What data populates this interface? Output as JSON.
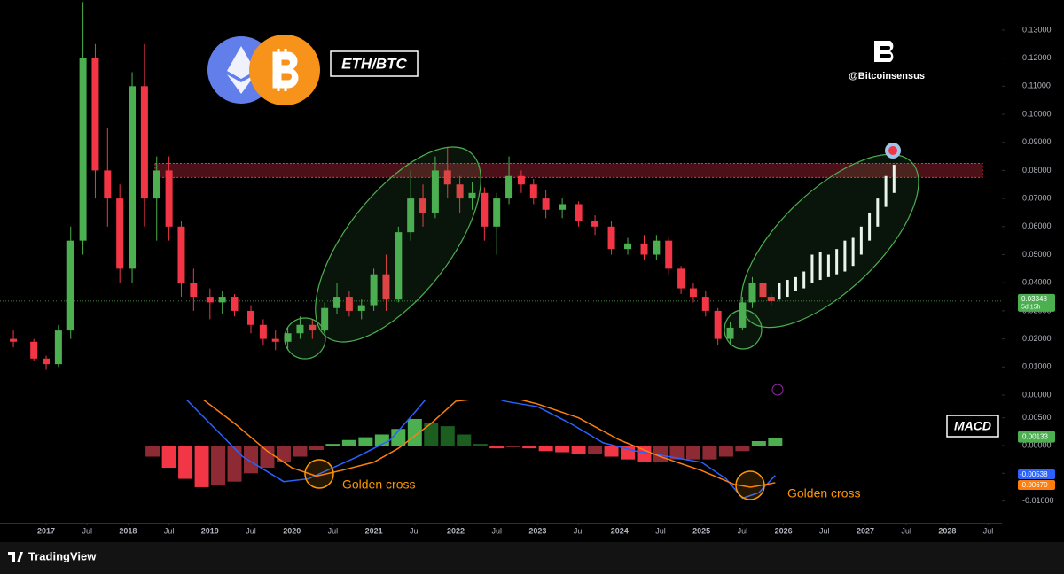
{
  "chart_data": [
    {
      "type": "candlestick",
      "title": "ETH/BTC",
      "watermark": "@Bitcoinsensus",
      "countdown": "5d 15h",
      "up_color": "#4caf50",
      "down_color": "#f23645",
      "x": [
        2016.6,
        2016.85,
        2017.0,
        2017.15,
        2017.3,
        2017.45,
        2017.6,
        2017.75,
        2017.9,
        2018.05,
        2018.2,
        2018.35,
        2018.5,
        2018.65,
        2018.8,
        2019.0,
        2019.15,
        2019.3,
        2019.5,
        2019.65,
        2019.8,
        2019.95,
        2020.1,
        2020.25,
        2020.4,
        2020.55,
        2020.7,
        2020.85,
        2021.0,
        2021.15,
        2021.3,
        2021.45,
        2021.6,
        2021.75,
        2021.9,
        2022.05,
        2022.2,
        2022.35,
        2022.5,
        2022.65,
        2022.8,
        2022.95,
        2023.1,
        2023.3,
        2023.5,
        2023.7,
        2023.9,
        2024.1,
        2024.3,
        2024.45,
        2024.6,
        2024.75,
        2024.9,
        2025.05,
        2025.2,
        2025.35,
        2025.5,
        2025.62,
        2025.75,
        2025.85
      ],
      "open": [
        0.02,
        0.019,
        0.013,
        0.011,
        0.023,
        0.055,
        0.12,
        0.08,
        0.07,
        0.045,
        0.11,
        0.07,
        0.08,
        0.06,
        0.04,
        0.035,
        0.033,
        0.035,
        0.03,
        0.025,
        0.02,
        0.019,
        0.022,
        0.025,
        0.023,
        0.031,
        0.035,
        0.03,
        0.032,
        0.043,
        0.034,
        0.058,
        0.07,
        0.065,
        0.08,
        0.075,
        0.07,
        0.072,
        0.06,
        0.07,
        0.078,
        0.075,
        0.07,
        0.066,
        0.068,
        0.062,
        0.06,
        0.052,
        0.054,
        0.05,
        0.055,
        0.045,
        0.038,
        0.035,
        0.03,
        0.02,
        0.024,
        0.033,
        0.04,
        0.035
      ],
      "high": [
        0.023,
        0.02,
        0.014,
        0.025,
        0.06,
        0.14,
        0.125,
        0.095,
        0.075,
        0.115,
        0.125,
        0.085,
        0.085,
        0.062,
        0.045,
        0.038,
        0.037,
        0.036,
        0.032,
        0.027,
        0.023,
        0.024,
        0.028,
        0.027,
        0.033,
        0.04,
        0.037,
        0.034,
        0.045,
        0.05,
        0.06,
        0.08,
        0.075,
        0.085,
        0.088,
        0.078,
        0.076,
        0.074,
        0.072,
        0.085,
        0.08,
        0.077,
        0.073,
        0.07,
        0.069,
        0.064,
        0.062,
        0.056,
        0.057,
        0.057,
        0.056,
        0.046,
        0.04,
        0.037,
        0.031,
        0.026,
        0.035,
        0.042,
        0.041,
        0.036
      ],
      "low": [
        0.017,
        0.012,
        0.009,
        0.01,
        0.02,
        0.05,
        0.07,
        0.06,
        0.04,
        0.04,
        0.06,
        0.055,
        0.055,
        0.035,
        0.03,
        0.027,
        0.029,
        0.028,
        0.022,
        0.018,
        0.016,
        0.016,
        0.02,
        0.02,
        0.022,
        0.029,
        0.028,
        0.027,
        0.03,
        0.03,
        0.033,
        0.055,
        0.06,
        0.063,
        0.07,
        0.065,
        0.066,
        0.055,
        0.05,
        0.068,
        0.072,
        0.068,
        0.063,
        0.063,
        0.06,
        0.057,
        0.05,
        0.05,
        0.048,
        0.048,
        0.043,
        0.036,
        0.033,
        0.028,
        0.018,
        0.018,
        0.023,
        0.031,
        0.033,
        0.032
      ],
      "close": [
        0.019,
        0.013,
        0.011,
        0.023,
        0.055,
        0.12,
        0.08,
        0.07,
        0.045,
        0.11,
        0.07,
        0.08,
        0.06,
        0.04,
        0.035,
        0.033,
        0.035,
        0.03,
        0.025,
        0.02,
        0.019,
        0.022,
        0.025,
        0.023,
        0.031,
        0.035,
        0.03,
        0.032,
        0.043,
        0.034,
        0.058,
        0.07,
        0.065,
        0.08,
        0.075,
        0.07,
        0.072,
        0.06,
        0.07,
        0.078,
        0.075,
        0.07,
        0.066,
        0.068,
        0.062,
        0.06,
        0.052,
        0.054,
        0.05,
        0.055,
        0.045,
        0.038,
        0.035,
        0.03,
        0.02,
        0.024,
        0.033,
        0.04,
        0.035,
        0.03348
      ],
      "projection": {
        "color": "#ffffff",
        "x": [
          2025.95,
          2026.05,
          2026.15,
          2026.25,
          2026.35,
          2026.45,
          2026.55,
          2026.65,
          2026.75,
          2026.85,
          2026.95,
          2027.05,
          2027.15,
          2027.25,
          2027.35
        ],
        "low": [
          0.034,
          0.035,
          0.037,
          0.038,
          0.04,
          0.041,
          0.042,
          0.043,
          0.044,
          0.046,
          0.05,
          0.055,
          0.06,
          0.067,
          0.072
        ],
        "high": [
          0.04,
          0.041,
          0.042,
          0.044,
          0.05,
          0.051,
          0.05,
          0.052,
          0.055,
          0.056,
          0.06,
          0.065,
          0.07,
          0.078,
          0.082
        ]
      },
      "zone": {
        "low": 0.0775,
        "high": 0.0825,
        "color": "#8b1e2b"
      },
      "xlim": [
        2016.437,
        2028.667
      ],
      "xticks": [
        2017,
        {
          "value": 2017.5,
          "label": "Jul"
        },
        2018,
        {
          "value": 2018.5,
          "label": "Jul"
        },
        2019,
        {
          "value": 2019.5,
          "label": "Jul"
        },
        2020,
        {
          "value": 2020.5,
          "label": "Jul"
        },
        2021,
        {
          "value": 2021.5,
          "label": "Jul"
        },
        2022,
        {
          "value": 2022.5,
          "label": "Jul"
        },
        2023,
        {
          "value": 2023.5,
          "label": "Jul"
        },
        2024,
        {
          "value": 2024.5,
          "label": "Jul"
        },
        2025,
        {
          "value": 2025.5,
          "label": "Jul"
        },
        2026,
        {
          "value": 2026.5,
          "label": "Jul"
        },
        2027,
        {
          "value": 2027.5,
          "label": "Jul"
        },
        2028,
        {
          "value": 2028.5,
          "label": "Jul"
        }
      ],
      "ylim": [
        -0.00126,
        0.1407
      ],
      "yticks": [
        {
          "value": 0,
          "label": "0.00000"
        },
        {
          "value": 0.01,
          "label": "0.01000"
        },
        {
          "value": 0.02,
          "label": "0.02000"
        },
        {
          "value": 0.03,
          "label": "0.03000"
        },
        {
          "value": 0.04,
          "label": "0.04000"
        },
        {
          "value": 0.05,
          "label": "0.05000"
        },
        {
          "value": 0.06,
          "label": "0.06000"
        },
        {
          "value": 0.07,
          "label": "0.07000"
        },
        {
          "value": 0.08,
          "label": "0.08000"
        },
        {
          "value": 0.09,
          "label": "0.09000"
        },
        {
          "value": 0.1,
          "label": "0.10000"
        },
        {
          "value": 0.11,
          "label": "0.11000"
        },
        {
          "value": 0.12,
          "label": "0.12000"
        },
        {
          "value": 0.13,
          "label": "0.13000"
        }
      ]
    },
    {
      "type": "macd",
      "title": "MACD",
      "annotations": [
        "Golden cross",
        "Golden cross"
      ],
      "x": [
        2018.3,
        2018.5,
        2018.7,
        2018.9,
        2019.1,
        2019.3,
        2019.5,
        2019.7,
        2019.9,
        2020.1,
        2020.3,
        2020.5,
        2020.7,
        2020.9,
        2021.1,
        2021.3,
        2021.5,
        2021.7,
        2021.9,
        2022.1,
        2022.3,
        2022.5,
        2022.7,
        2022.9,
        2023.1,
        2023.3,
        2023.5,
        2023.7,
        2023.9,
        2024.1,
        2024.3,
        2024.5,
        2024.7,
        2024.9,
        2025.1,
        2025.3,
        2025.5,
        2025.7,
        2025.9
      ],
      "histogram": [
        -0.002,
        -0.004,
        -0.006,
        -0.0075,
        -0.0072,
        -0.0065,
        -0.005,
        -0.004,
        -0.003,
        -0.002,
        -0.0008,
        0.0003,
        0.001,
        0.0015,
        0.002,
        0.003,
        0.0048,
        0.004,
        0.0035,
        0.002,
        0.0003,
        -0.0005,
        -0.0003,
        -0.0005,
        -0.001,
        -0.0012,
        -0.0015,
        -0.0015,
        -0.002,
        -0.0025,
        -0.003,
        -0.003,
        -0.0025,
        -0.0025,
        -0.0025,
        -0.002,
        -0.001,
        0.0008,
        0.00133
      ],
      "series": [
        {
          "color": "#2962ff",
          "x": [
            2018.7,
            2019.0,
            2019.4,
            2019.9,
            2020.2,
            2020.5,
            2020.8,
            2021.2,
            2021.5,
            2021.7,
            2022.3,
            2022.6,
            2023.0,
            2023.4,
            2023.8,
            2024.2,
            2024.6,
            2025.0,
            2025.3,
            2025.5,
            2025.7,
            2025.9
          ],
          "values": [
            0.0085,
            0.004,
            -0.002,
            -0.0065,
            -0.006,
            -0.004,
            -0.002,
            0.001,
            0.006,
            0.0095,
            0.0095,
            0.008,
            0.007,
            0.004,
            0.0005,
            -0.001,
            -0.002,
            -0.003,
            -0.006,
            -0.0095,
            -0.0085,
            -0.00538
          ]
        },
        {
          "color": "#ff7f0e",
          "x": [
            2018.9,
            2019.3,
            2019.7,
            2020.0,
            2020.3,
            2020.6,
            2021.0,
            2021.3,
            2021.7,
            2022.0,
            2022.6,
            2023.0,
            2023.5,
            2024.0,
            2024.5,
            2025.0,
            2025.4,
            2025.6,
            2025.9
          ],
          "values": [
            0.0085,
            0.004,
            -0.001,
            -0.004,
            -0.0055,
            -0.0045,
            -0.003,
            -0.0005,
            0.004,
            0.008,
            0.009,
            0.0075,
            0.005,
            0.001,
            -0.002,
            -0.0045,
            -0.007,
            -0.0075,
            -0.0067
          ],
          "last_value_label": "-0.00670"
        }
      ],
      "ylim": [
        -0.0139,
        0.00815
      ],
      "yticks": [
        {
          "value": 0.005,
          "label": "0.00500"
        },
        {
          "value": 0,
          "label": "0.00000"
        },
        {
          "value": -0.005,
          "label": "-0.00500"
        },
        {
          "value": -0.01,
          "label": "-0.01000"
        }
      ]
    }
  ],
  "footer": {
    "brand": "TradingView"
  }
}
